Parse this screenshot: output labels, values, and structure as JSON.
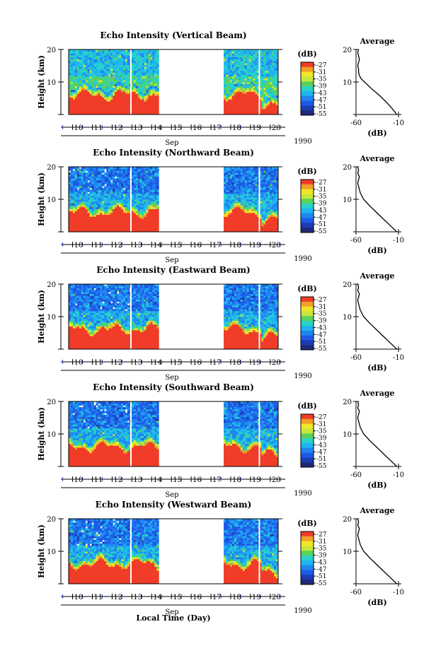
{
  "colors": {
    "scale": [
      "#1e2a78",
      "#1c3cb4",
      "#1f5ae6",
      "#1f86f0",
      "#20b4f0",
      "#28d2c8",
      "#5ad25a",
      "#c8e63c",
      "#f0e628",
      "#f0a028",
      "#f03c28"
    ],
    "blank": "#ffffff"
  },
  "chart_data": [
    {
      "type": "heatmap",
      "title": "Echo Intensity (Vertical Beam)",
      "ylabel": "Height (km)",
      "ylim": [
        0,
        20
      ],
      "yticks": [
        "0",
        "10",
        "20"
      ],
      "x_days": [
        "10",
        "11",
        "12",
        "13",
        "14",
        "15",
        "16",
        "17",
        "18",
        "19",
        "20"
      ],
      "month": "Sep",
      "year": "1990",
      "colorbar": {
        "unit": "(dB)",
        "labels": [
          "-27",
          "-31",
          "-35",
          "-39",
          "-43",
          "-47",
          "-51",
          "-55"
        ]
      },
      "data_gaps_days": [
        [
          14.4,
          17.6
        ]
      ],
      "average_profile": {
        "title": "Average",
        "xlabel": "(dB)",
        "xlim": [
          -60,
          -10
        ],
        "xticks": [
          "-60",
          "-10"
        ],
        "height_km": [
          0,
          2,
          4,
          6,
          8,
          10,
          11,
          12,
          13,
          14,
          15,
          16,
          17,
          18,
          19,
          20
        ],
        "db": [
          -12,
          -18,
          -25,
          -33,
          -42,
          -50,
          -54,
          -56,
          -57,
          -57,
          -58,
          -57,
          -56,
          -57,
          -58,
          -57
        ]
      }
    },
    {
      "type": "heatmap",
      "title": "Echo Intensity (Northward Beam)",
      "ylabel": "Height (km)",
      "ylim": [
        0,
        20
      ],
      "yticks": [
        "0",
        "10",
        "20"
      ],
      "x_days": [
        "10",
        "11",
        "12",
        "13",
        "14",
        "15",
        "16",
        "17",
        "18",
        "19",
        "20"
      ],
      "month": "Sep",
      "year": "1990",
      "colorbar": {
        "unit": "(dB)",
        "labels": [
          "-27",
          "-31",
          "-35",
          "-39",
          "-43",
          "-47",
          "-51",
          "-55"
        ]
      },
      "data_gaps_days": [
        [
          14.4,
          17.6
        ]
      ],
      "average_profile": {
        "title": "Average",
        "xlabel": "(dB)",
        "xlim": [
          -60,
          -10
        ],
        "xticks": [
          "-60",
          "-10"
        ],
        "height_km": [
          0,
          2,
          4,
          6,
          8,
          10,
          12,
          14,
          15,
          16,
          17,
          18,
          19,
          20
        ],
        "db": [
          -12,
          -20,
          -28,
          -36,
          -44,
          -51,
          -55,
          -57,
          -58,
          -57,
          -56,
          -58,
          -57,
          -58
        ]
      }
    },
    {
      "type": "heatmap",
      "title": "Echo Intensity (Eastward Beam)",
      "ylabel": "Height (km)",
      "ylim": [
        0,
        20
      ],
      "yticks": [
        "0",
        "10",
        "20"
      ],
      "x_days": [
        "10",
        "11",
        "12",
        "13",
        "14",
        "15",
        "16",
        "17",
        "18",
        "19",
        "20"
      ],
      "month": "Sep",
      "year": "1990",
      "colorbar": {
        "unit": "(dB)",
        "labels": [
          "-27",
          "-31",
          "-35",
          "-39",
          "-43",
          "-47",
          "-51",
          "-55"
        ]
      },
      "data_gaps_days": [
        [
          14.4,
          17.6
        ]
      ],
      "average_profile": {
        "title": "Average",
        "xlabel": "(dB)",
        "xlim": [
          -60,
          -10
        ],
        "xticks": [
          "-60",
          "-10"
        ],
        "height_km": [
          0,
          2,
          4,
          6,
          8,
          10,
          12,
          14,
          15,
          16,
          17,
          18,
          19,
          20
        ],
        "db": [
          -12,
          -20,
          -28,
          -36,
          -44,
          -51,
          -55,
          -57,
          -58,
          -57,
          -56,
          -58,
          -57,
          -58
        ]
      }
    },
    {
      "type": "heatmap",
      "title": "Echo Intensity (Southward Beam)",
      "ylabel": "Height (km)",
      "ylim": [
        0,
        20
      ],
      "yticks": [
        "0",
        "10",
        "20"
      ],
      "x_days": [
        "10",
        "11",
        "12",
        "13",
        "14",
        "15",
        "16",
        "17",
        "18",
        "19",
        "20"
      ],
      "month": "Sep",
      "year": "1990",
      "colorbar": {
        "unit": "(dB)",
        "labels": [
          "-27",
          "-31",
          "-35",
          "-39",
          "-43",
          "-47",
          "-51",
          "-55"
        ]
      },
      "data_gaps_days": [
        [
          14.4,
          17.6
        ]
      ],
      "average_profile": {
        "title": "Average",
        "xlabel": "(dB)",
        "xlim": [
          -60,
          -10
        ],
        "xticks": [
          "-60",
          "-10"
        ],
        "height_km": [
          0,
          2,
          4,
          6,
          8,
          10,
          12,
          14,
          15,
          16,
          17,
          18,
          19,
          20
        ],
        "db": [
          -12,
          -20,
          -28,
          -36,
          -44,
          -51,
          -55,
          -57,
          -58,
          -57,
          -56,
          -58,
          -57,
          -58
        ]
      }
    },
    {
      "type": "heatmap",
      "title": "Echo Intensity (Westward Beam)",
      "ylabel": "Height (km)",
      "ylim": [
        0,
        20
      ],
      "yticks": [
        "0",
        "10",
        "20"
      ],
      "x_days": [
        "10",
        "11",
        "12",
        "13",
        "14",
        "15",
        "16",
        "17",
        "18",
        "19",
        "20"
      ],
      "month": "Sep",
      "year": "1990",
      "colorbar": {
        "unit": "(dB)",
        "labels": [
          "-27",
          "-31",
          "-35",
          "-39",
          "-43",
          "-47",
          "-51",
          "-55"
        ]
      },
      "data_gaps_days": [
        [
          14.4,
          17.6
        ]
      ],
      "average_profile": {
        "title": "Average",
        "xlabel": "(dB)",
        "xlim": [
          -60,
          -10
        ],
        "xticks": [
          "-60",
          "-10"
        ],
        "height_km": [
          0,
          2,
          4,
          6,
          8,
          10,
          12,
          14,
          15,
          16,
          17,
          18,
          19,
          20
        ],
        "db": [
          -12,
          -20,
          -28,
          -36,
          -44,
          -51,
          -55,
          -57,
          -58,
          -57,
          -56,
          -58,
          -57,
          -58
        ]
      }
    }
  ],
  "figure": {
    "xlabel": "Local Time (Day)"
  }
}
